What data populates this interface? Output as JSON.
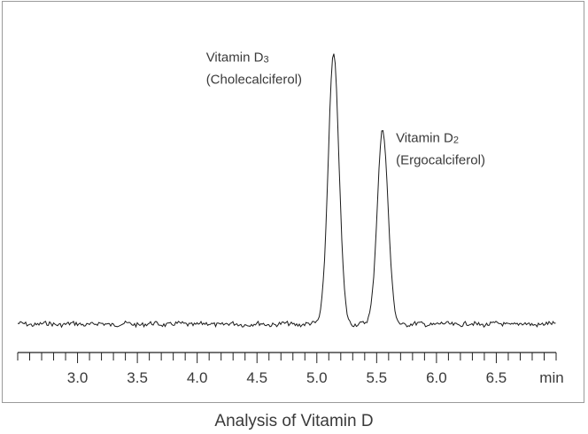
{
  "chart_data": {
    "type": "line",
    "title": "Analysis of Vitamin D",
    "xlabel": "min",
    "ylabel": "",
    "xlim": [
      2.5,
      7.0
    ],
    "x_ticks_major": [
      3.0,
      3.5,
      4.0,
      4.5,
      5.0,
      5.5,
      6.0,
      6.5
    ],
    "x_tick_labels": [
      "3.0",
      "3.5",
      "4.0",
      "4.5",
      "5.0",
      "5.5",
      "6.0",
      "6.5"
    ],
    "x_minor_step": 0.1,
    "ylim": [
      0,
      1.0
    ],
    "grid": false,
    "baseline_level": 0.0,
    "series": [
      {
        "peaks": [
          {
            "retention_time": 5.14,
            "height": 0.94,
            "width": 0.045
          },
          {
            "retention_time": 5.55,
            "height": 0.68,
            "width": 0.045
          }
        ]
      }
    ],
    "annotations": [
      {
        "line1": "Vitamin D",
        "sub": "3",
        "line2": "(Cholecalciferol)",
        "peak": 0
      },
      {
        "line1": "Vitamin D",
        "sub": "2",
        "line2": "(Ergocalciferol)",
        "peak": 1
      }
    ]
  }
}
